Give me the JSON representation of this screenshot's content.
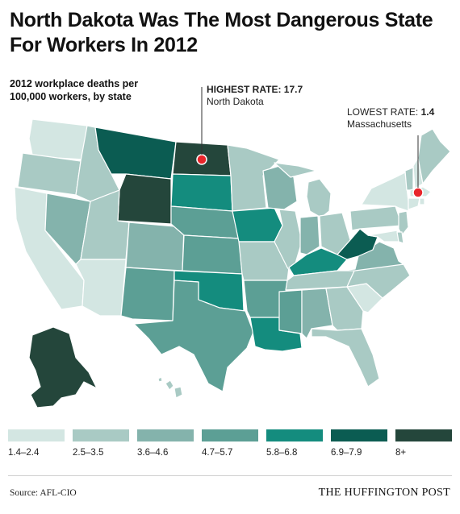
{
  "title": "North Dakota Was The Most Dangerous State For Workers In 2012",
  "subtitle": "2012 workplace deaths per 100,000 workers, by state",
  "callouts": {
    "highest": {
      "label": "HIGHEST RATE:",
      "value": "17.7",
      "state": "North Dakota"
    },
    "lowest": {
      "label": "LOWEST RATE:",
      "value": "1.4",
      "state": "Massachusetts"
    }
  },
  "legend": [
    {
      "label": "1.4–2.4",
      "color": "#d3e6e2"
    },
    {
      "label": "2.5–3.5",
      "color": "#a9cac4"
    },
    {
      "label": "3.6–4.6",
      "color": "#84b3ac"
    },
    {
      "label": "4.7–5.7",
      "color": "#5c9f95"
    },
    {
      "label": "5.8–6.8",
      "color": "#148c7e"
    },
    {
      "label": "6.9–7.9",
      "color": "#0b5c52"
    },
    {
      "label": "8+",
      "color": "#24463b"
    }
  ],
  "marker_color": "#e8262b",
  "source": "Source: AFL-CIO",
  "brand": "THE HUFFINGTON POST"
}
